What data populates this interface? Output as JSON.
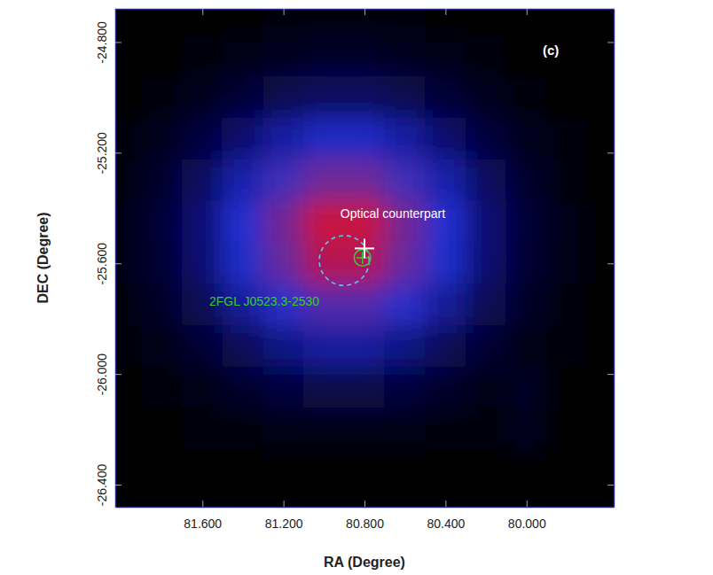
{
  "chart_data": {
    "type": "heatmap",
    "panel_label": "(c)",
    "x_label": "RA (Degree)",
    "y_label": "DEC (Degree)",
    "xlim": [
      82.03,
      79.57
    ],
    "ylim": [
      -26.48,
      -24.68
    ],
    "xticks": [
      {
        "value": 81.6,
        "label": "81.600"
      },
      {
        "value": 81.2,
        "label": "81.200"
      },
      {
        "value": 80.8,
        "label": "80.800"
      },
      {
        "value": 80.4,
        "label": "80.400"
      },
      {
        "value": 80.0,
        "label": "80.000"
      }
    ],
    "yticks": [
      {
        "value": -24.8,
        "label": "-24.800"
      },
      {
        "value": -25.2,
        "label": "-25.200"
      },
      {
        "value": -25.6,
        "label": "-25.600"
      },
      {
        "value": -26.0,
        "label": "-26.000"
      },
      {
        "value": -26.4,
        "label": "-26.400"
      }
    ],
    "x": [
      82.0,
      81.8,
      81.6,
      81.4,
      81.2,
      81.0,
      80.8,
      80.6,
      80.4,
      80.2,
      80.0,
      79.8,
      79.6
    ],
    "y": [
      -24.7,
      -24.85,
      -25.0,
      -25.15,
      -25.3,
      -25.45,
      -25.6,
      -25.75,
      -25.9,
      -26.05,
      -26.2,
      -26.35,
      -26.5
    ],
    "values": [
      [
        0.0,
        0.1,
        0.2,
        0.4,
        0.6,
        0.7,
        0.7,
        0.6,
        0.4,
        0.2,
        0.1,
        0.0,
        0.0
      ],
      [
        0.1,
        0.3,
        0.7,
        1.3,
        1.9,
        2.3,
        2.3,
        1.9,
        1.3,
        0.7,
        0.3,
        0.1,
        0.0
      ],
      [
        0.3,
        0.8,
        1.9,
        3.4,
        5.0,
        6.1,
        6.1,
        5.0,
        3.4,
        1.9,
        0.8,
        0.3,
        0.1
      ],
      [
        0.6,
        1.7,
        3.8,
        6.9,
        10.2,
        12.4,
        12.4,
        10.2,
        6.9,
        3.8,
        1.7,
        0.6,
        0.2
      ],
      [
        1.0,
        2.7,
        6.0,
        10.8,
        16.0,
        19.5,
        19.5,
        16.0,
        10.8,
        6.0,
        2.7,
        1.0,
        0.3
      ],
      [
        1.2,
        3.3,
        7.4,
        13.3,
        19.7,
        24.1,
        24.1,
        19.7,
        13.3,
        7.4,
        3.3,
        1.2,
        0.4
      ],
      [
        1.2,
        3.2,
        7.1,
        12.8,
        18.9,
        23.1,
        23.1,
        18.9,
        12.8,
        7.1,
        3.2,
        1.2,
        0.4
      ],
      [
        0.9,
        2.4,
        5.3,
        9.6,
        14.2,
        17.3,
        17.3,
        14.2,
        9.6,
        5.3,
        2.4,
        0.9,
        0.3
      ],
      [
        0.5,
        1.4,
        3.1,
        5.5,
        8.2,
        10.0,
        10.0,
        8.2,
        5.5,
        3.1,
        1.4,
        0.5,
        0.2
      ],
      [
        0.2,
        0.6,
        1.4,
        2.6,
        3.8,
        4.6,
        4.6,
        3.8,
        2.6,
        1.4,
        2.0,
        0.2,
        0.1
      ],
      [
        0.1,
        0.2,
        0.5,
        0.9,
        1.3,
        1.6,
        1.6,
        1.3,
        0.9,
        0.5,
        1.8,
        0.1,
        0.0
      ],
      [
        0.0,
        0.1,
        0.1,
        0.2,
        0.4,
        0.4,
        0.4,
        0.4,
        0.2,
        0.1,
        0.1,
        0.0,
        0.0
      ],
      [
        0.0,
        0.0,
        0.0,
        0.1,
        0.1,
        0.1,
        0.1,
        0.1,
        0.1,
        0.0,
        0.0,
        0.0,
        0.0
      ]
    ],
    "error_circle": {
      "x": 80.9,
      "y": -25.59,
      "radius": 0.09,
      "color": "#5fc8e8",
      "line_style": "dashed"
    },
    "optical_counterpart": {
      "x": 80.8,
      "y": -25.546,
      "label": "Optical counterpart",
      "color": "#ffffff",
      "marker": "cross"
    },
    "source": {
      "x": 80.81,
      "y": -25.58,
      "radius": 0.03,
      "label": "2FGL J0523.3-2530",
      "color": "#33cc33",
      "marker": "cross"
    }
  }
}
